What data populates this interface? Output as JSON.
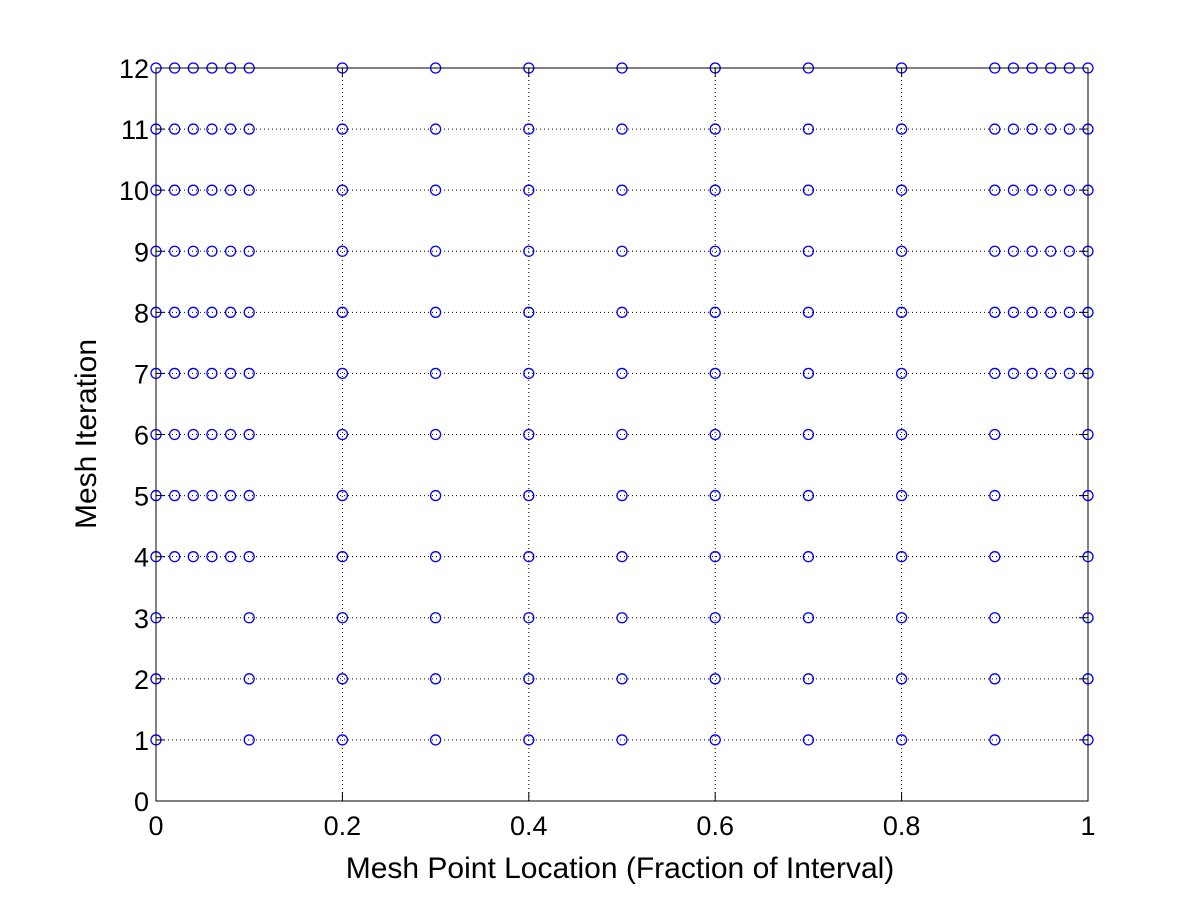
{
  "chart_data": {
    "type": "scatter",
    "title": "",
    "xlabel": "Mesh Point Location (Fraction of Interval)",
    "ylabel": "Mesh Iteration",
    "xlim": [
      0,
      1
    ],
    "ylim": [
      0,
      12
    ],
    "x_ticks": [
      "0",
      "0.2",
      "0.4",
      "0.6",
      "0.8",
      "1"
    ],
    "y_ticks": [
      "0",
      "1",
      "2",
      "3",
      "4",
      "5",
      "6",
      "7",
      "8",
      "9",
      "10",
      "11",
      "12"
    ],
    "grid": true,
    "marker": "circle-open",
    "marker_color": "#0000ff",
    "iterations": [
      {
        "y": 1,
        "x": [
          0,
          0.1,
          0.2,
          0.3,
          0.4,
          0.5,
          0.6,
          0.7,
          0.8,
          0.9,
          1
        ]
      },
      {
        "y": 2,
        "x": [
          0,
          0.1,
          0.2,
          0.3,
          0.4,
          0.5,
          0.6,
          0.7,
          0.8,
          0.9,
          1
        ]
      },
      {
        "y": 3,
        "x": [
          0,
          0.1,
          0.2,
          0.3,
          0.4,
          0.5,
          0.6,
          0.7,
          0.8,
          0.9,
          1
        ]
      },
      {
        "y": 4,
        "x": [
          0,
          0.02,
          0.04,
          0.06,
          0.08,
          0.1,
          0.2,
          0.3,
          0.4,
          0.5,
          0.6,
          0.7,
          0.8,
          0.9,
          1
        ]
      },
      {
        "y": 5,
        "x": [
          0,
          0.02,
          0.04,
          0.06,
          0.08,
          0.1,
          0.2,
          0.3,
          0.4,
          0.5,
          0.6,
          0.7,
          0.8,
          0.9,
          1
        ]
      },
      {
        "y": 6,
        "x": [
          0,
          0.02,
          0.04,
          0.06,
          0.08,
          0.1,
          0.2,
          0.3,
          0.4,
          0.5,
          0.6,
          0.7,
          0.8,
          0.9,
          1
        ]
      },
      {
        "y": 7,
        "x": [
          0,
          0.02,
          0.04,
          0.06,
          0.08,
          0.1,
          0.2,
          0.3,
          0.4,
          0.5,
          0.6,
          0.7,
          0.8,
          0.9,
          0.92,
          0.94,
          0.96,
          0.98,
          1
        ]
      },
      {
        "y": 8,
        "x": [
          0,
          0.02,
          0.04,
          0.06,
          0.08,
          0.1,
          0.2,
          0.3,
          0.4,
          0.5,
          0.6,
          0.7,
          0.8,
          0.9,
          0.92,
          0.94,
          0.96,
          0.98,
          1
        ]
      },
      {
        "y": 9,
        "x": [
          0,
          0.02,
          0.04,
          0.06,
          0.08,
          0.1,
          0.2,
          0.3,
          0.4,
          0.5,
          0.6,
          0.7,
          0.8,
          0.9,
          0.92,
          0.94,
          0.96,
          0.98,
          1
        ]
      },
      {
        "y": 10,
        "x": [
          0,
          0.02,
          0.04,
          0.06,
          0.08,
          0.1,
          0.2,
          0.3,
          0.4,
          0.5,
          0.6,
          0.7,
          0.8,
          0.9,
          0.92,
          0.94,
          0.96,
          0.98,
          1
        ]
      },
      {
        "y": 11,
        "x": [
          0,
          0.02,
          0.04,
          0.06,
          0.08,
          0.1,
          0.2,
          0.3,
          0.4,
          0.5,
          0.6,
          0.7,
          0.8,
          0.9,
          0.92,
          0.94,
          0.96,
          0.98,
          1
        ]
      },
      {
        "y": 12,
        "x": [
          0,
          0.02,
          0.04,
          0.06,
          0.08,
          0.1,
          0.2,
          0.3,
          0.4,
          0.5,
          0.6,
          0.7,
          0.8,
          0.9,
          0.92,
          0.94,
          0.96,
          0.98,
          1
        ]
      }
    ]
  }
}
